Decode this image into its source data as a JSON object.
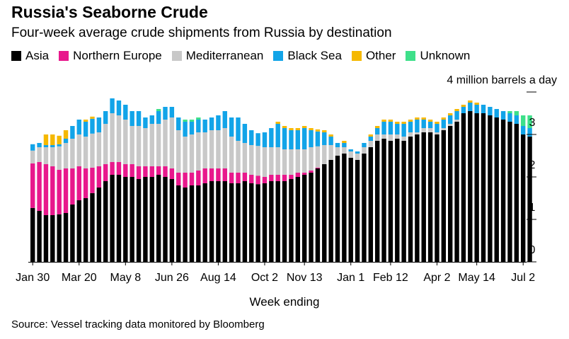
{
  "title": "Russia's Seaborne Crude",
  "subtitle": "Four-week average crude shipments from Russia by destination",
  "source": "Source: Vessel tracking data monitored by Bloomberg",
  "chart_data": {
    "type": "bar",
    "stacked": true,
    "title": "Russia's Seaborne Crude",
    "subtitle": "Four-week average crude shipments from Russia by destination",
    "xlabel": "Week ending",
    "ylabel": "",
    "y_unit_label": "4 million barrels a day",
    "ylim": [
      0,
      4
    ],
    "yticks": [
      0,
      1,
      2,
      3,
      4
    ],
    "ytick_labels": [
      "0",
      "1",
      "2",
      "3",
      ""
    ],
    "y_axis_side": "right",
    "grid": false,
    "legend_placement": "top-left",
    "x_tick_labels": [
      {
        "label": "Jan 30",
        "index": 0
      },
      {
        "label": "Mar 20",
        "index": 7
      },
      {
        "label": "May 8",
        "index": 14
      },
      {
        "label": "Jun 26",
        "index": 21
      },
      {
        "label": "Aug 14",
        "index": 28
      },
      {
        "label": "Oct 2",
        "index": 35
      },
      {
        "label": "Nov 13",
        "index": 41
      },
      {
        "label": "Jan 1",
        "index": 48
      },
      {
        "label": "Feb 12",
        "index": 54
      },
      {
        "label": "Apr 2",
        "index": 61
      },
      {
        "label": "May 14",
        "index": 67
      },
      {
        "label": "Jul 2",
        "index": 74
      }
    ],
    "series": [
      {
        "name": "Asia",
        "color": "#000000",
        "values": [
          1.27,
          1.2,
          1.1,
          1.1,
          1.12,
          1.15,
          1.35,
          1.45,
          1.5,
          1.62,
          1.75,
          1.9,
          2.05,
          2.05,
          2.0,
          2.0,
          1.95,
          2.0,
          2.0,
          2.05,
          2.0,
          1.95,
          1.8,
          1.75,
          1.8,
          1.8,
          1.85,
          1.9,
          1.9,
          1.9,
          1.85,
          1.85,
          1.9,
          1.85,
          1.83,
          1.85,
          1.9,
          1.9,
          1.9,
          1.95,
          2.0,
          2.05,
          2.1,
          2.2,
          2.3,
          2.4,
          2.5,
          2.55,
          2.45,
          2.4,
          2.55,
          2.7,
          2.85,
          2.9,
          2.85,
          2.9,
          2.85,
          2.95,
          3.0,
          3.05,
          3.05,
          3.0,
          3.1,
          3.2,
          3.3,
          3.5,
          3.55,
          3.5,
          3.5,
          3.45,
          3.4,
          3.35,
          3.3,
          3.25,
          3.0,
          2.95
        ]
      },
      {
        "name": "Northern Europe",
        "color": "#e8188c",
        "values": [
          1.05,
          1.15,
          1.2,
          1.15,
          1.05,
          1.05,
          0.85,
          0.8,
          0.7,
          0.6,
          0.5,
          0.4,
          0.3,
          0.3,
          0.3,
          0.3,
          0.3,
          0.25,
          0.25,
          0.2,
          0.25,
          0.25,
          0.3,
          0.35,
          0.3,
          0.35,
          0.35,
          0.3,
          0.3,
          0.3,
          0.25,
          0.25,
          0.2,
          0.2,
          0.2,
          0.15,
          0.15,
          0.15,
          0.15,
          0.1,
          0.1,
          0.05,
          0.05,
          0.02,
          0.0,
          0.0,
          0.0,
          0.0,
          0.0,
          0.0,
          0.0,
          0.0,
          0.0,
          0.0,
          0.0,
          0.0,
          0.0,
          0.0,
          0.0,
          0.0,
          0.0,
          0.0,
          0.0,
          0.0,
          0.0,
          0.0,
          0.0,
          0.0,
          0.0,
          0.0,
          0.0,
          0.0,
          0.0,
          0.0,
          0.0,
          0.0
        ]
      },
      {
        "name": "Mediterranean",
        "color": "#c8c8c8",
        "values": [
          0.3,
          0.35,
          0.4,
          0.45,
          0.55,
          0.6,
          0.7,
          0.75,
          0.75,
          0.8,
          0.8,
          0.95,
          1.15,
          1.1,
          1.05,
          0.9,
          0.95,
          0.9,
          1.0,
          1.0,
          1.1,
          1.2,
          1.0,
          0.85,
          0.9,
          0.9,
          0.85,
          0.9,
          0.9,
          0.95,
          0.85,
          0.75,
          0.7,
          0.7,
          0.7,
          0.7,
          0.65,
          0.65,
          0.6,
          0.6,
          0.55,
          0.55,
          0.55,
          0.5,
          0.45,
          0.35,
          0.2,
          0.15,
          0.15,
          0.15,
          0.15,
          0.15,
          0.15,
          0.1,
          0.15,
          0.1,
          0.1,
          0.1,
          0.05,
          0.1,
          0.1,
          0.05,
          0.05,
          0.05,
          0.05,
          0.0,
          0.0,
          0.0,
          0.0,
          0.0,
          0.0,
          0.0,
          0.0,
          0.0,
          0.0,
          0.0
        ]
      },
      {
        "name": "Black Sea",
        "color": "#12a4e8",
        "values": [
          0.15,
          0.1,
          0.05,
          0.05,
          0.05,
          0.1,
          0.3,
          0.35,
          0.35,
          0.35,
          0.35,
          0.3,
          0.35,
          0.35,
          0.35,
          0.35,
          0.35,
          0.25,
          0.2,
          0.3,
          0.3,
          0.25,
          0.3,
          0.35,
          0.3,
          0.3,
          0.3,
          0.3,
          0.35,
          0.4,
          0.45,
          0.55,
          0.45,
          0.35,
          0.3,
          0.35,
          0.45,
          0.55,
          0.5,
          0.45,
          0.45,
          0.5,
          0.4,
          0.35,
          0.3,
          0.2,
          0.1,
          0.1,
          0.05,
          0.05,
          0.1,
          0.1,
          0.15,
          0.3,
          0.3,
          0.25,
          0.3,
          0.25,
          0.3,
          0.2,
          0.15,
          0.2,
          0.2,
          0.2,
          0.2,
          0.15,
          0.2,
          0.2,
          0.2,
          0.2,
          0.2,
          0.2,
          0.2,
          0.2,
          0.2,
          0.2
        ]
      },
      {
        "name": "Other",
        "color": "#f5b800",
        "values": [
          0.0,
          0.0,
          0.25,
          0.25,
          0.2,
          0.2,
          0.0,
          0.0,
          0.05,
          0.05,
          0.0,
          0.0,
          0.0,
          0.0,
          0.0,
          0.0,
          0.0,
          0.0,
          0.0,
          0.0,
          0.0,
          0.0,
          0.0,
          0.0,
          0.0,
          0.0,
          0.0,
          0.0,
          0.0,
          0.0,
          0.0,
          0.0,
          0.0,
          0.0,
          0.0,
          0.0,
          0.0,
          0.05,
          0.05,
          0.05,
          0.05,
          0.05,
          0.05,
          0.05,
          0.05,
          0.05,
          0.0,
          0.05,
          0.0,
          0.0,
          0.0,
          0.05,
          0.05,
          0.05,
          0.05,
          0.05,
          0.05,
          0.05,
          0.05,
          0.05,
          0.05,
          0.05,
          0.05,
          0.05,
          0.05,
          0.05,
          0.05,
          0.05,
          0.0,
          0.0,
          0.0,
          0.0,
          0.0,
          0.0,
          0.0,
          0.0
        ]
      },
      {
        "name": "Unknown",
        "color": "#3ee08a",
        "values": [
          0.0,
          0.0,
          0.0,
          0.0,
          0.0,
          0.0,
          0.0,
          0.0,
          0.0,
          0.0,
          0.0,
          0.0,
          0.0,
          0.0,
          0.0,
          0.0,
          0.0,
          0.0,
          0.0,
          0.05,
          0.0,
          0.0,
          0.0,
          0.05,
          0.05,
          0.05,
          0.0,
          0.0,
          0.0,
          0.0,
          0.0,
          0.0,
          0.0,
          0.0,
          0.0,
          0.0,
          0.0,
          0.0,
          0.0,
          0.0,
          0.0,
          0.0,
          0.0,
          0.0,
          0.0,
          0.0,
          0.0,
          0.0,
          0.0,
          0.0,
          0.0,
          0.0,
          0.0,
          0.0,
          0.0,
          0.0,
          0.0,
          0.0,
          0.0,
          0.0,
          0.0,
          0.0,
          0.0,
          0.0,
          0.0,
          0.0,
          0.0,
          0.0,
          0.0,
          0.0,
          0.0,
          0.0,
          0.05,
          0.1,
          0.25,
          0.3
        ]
      }
    ]
  }
}
